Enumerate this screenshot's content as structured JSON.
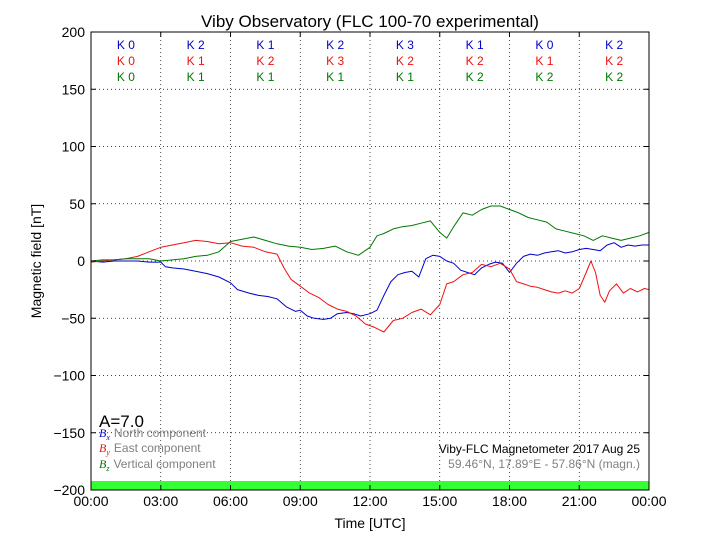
{
  "chart_data": {
    "type": "line",
    "title": "Viby Observatory (FLC 100-70 experimental)",
    "xlabel": "Time [UTC]",
    "ylabel": "Magnetic field [nT]",
    "xlim": [
      0,
      24
    ],
    "ylim": [
      -200,
      200
    ],
    "x_tick_labels": [
      "00:00",
      "03:00",
      "06:00",
      "09:00",
      "12:00",
      "15:00",
      "18:00",
      "21:00",
      "00:00"
    ],
    "y_ticks": [
      200,
      150,
      100,
      50,
      0,
      -50,
      -100,
      -150,
      -200
    ],
    "y_tick_labels": [
      "200",
      "150",
      "100",
      "50",
      "0",
      "−50",
      "−100",
      "−150",
      "−200"
    ],
    "grid": true,
    "colors": {
      "bx": "#0000cc",
      "by": "#ee1111",
      "bz": "#007700",
      "status_bar": "#33ff33",
      "muted": "#808080"
    },
    "k_index": {
      "bx": [
        "K 0",
        "K 2",
        "K 1",
        "K 2",
        "K 3",
        "K 1",
        "K 0",
        "K 2"
      ],
      "by": [
        "K 0",
        "K 1",
        "K 2",
        "K 3",
        "K 2",
        "K 2",
        "K 1",
        "K 2"
      ],
      "bz": [
        "K 0",
        "K 1",
        "K 1",
        "K 1",
        "K 1",
        "K 2",
        "K 2",
        "K 2"
      ]
    },
    "a_index": "A=7.0",
    "legend": {
      "position": "bottom-left",
      "entries": [
        {
          "symbol": "B",
          "sub": "x",
          "label": "North component"
        },
        {
          "symbol": "B",
          "sub": "y",
          "label": "East component"
        },
        {
          "symbol": "B",
          "sub": "z",
          "label": "Vertical component"
        }
      ]
    },
    "station_text": "Viby-FLC Magnetometer 2017 Aug 25",
    "coord_text": "59.46°N, 17.89°E - 57.86°N (magn.)",
    "series": [
      {
        "key": "bx",
        "x": [
          0,
          0.5,
          1,
          1.5,
          2,
          2.5,
          3,
          3.2,
          3.5,
          4,
          4.5,
          5,
          5.5,
          6,
          6.3,
          6.8,
          7.2,
          7.6,
          8,
          8.4,
          8.8,
          9,
          9.3,
          9.6,
          10,
          10.3,
          10.6,
          11,
          11.3,
          11.6,
          12,
          12.3,
          12.6,
          12.9,
          13.2,
          13.5,
          13.8,
          14.1,
          14.4,
          14.7,
          15,
          15.3,
          15.6,
          15.9,
          16.2,
          16.5,
          16.8,
          17.1,
          17.4,
          17.7,
          18,
          18.3,
          18.6,
          18.9,
          19.2,
          19.5,
          19.8,
          20.1,
          20.4,
          20.7,
          21,
          21.3,
          21.6,
          21.9,
          22.2,
          22.5,
          22.8,
          23.1,
          23.4,
          23.7,
          24
        ],
        "y": [
          0,
          -1,
          0,
          0,
          0,
          -1,
          -1,
          -5,
          -6,
          -7,
          -9,
          -11,
          -14,
          -19,
          -25,
          -28,
          -30,
          -31,
          -33,
          -40,
          -44,
          -43,
          -48,
          -50,
          -51,
          -50,
          -46,
          -45,
          -46,
          -48,
          -46,
          -43,
          -30,
          -18,
          -12,
          -10,
          -9,
          -14,
          2,
          5,
          4,
          0,
          -2,
          -8,
          -10,
          -12,
          -6,
          -3,
          -1,
          -2,
          -10,
          -2,
          4,
          6,
          5,
          7,
          8,
          9,
          7,
          8,
          10,
          11,
          10,
          9,
          14,
          16,
          12,
          14,
          13,
          14,
          14
        ]
      },
      {
        "key": "by",
        "x": [
          0,
          0.5,
          1,
          1.5,
          2,
          2.5,
          3,
          3.5,
          4,
          4.5,
          5,
          5.5,
          6,
          6.5,
          7,
          7.5,
          8,
          8.3,
          8.6,
          9,
          9.4,
          9.8,
          10.2,
          10.6,
          11,
          11.4,
          11.8,
          12.2,
          12.6,
          13,
          13.4,
          13.8,
          14.2,
          14.6,
          15,
          15.3,
          15.6,
          16,
          16.4,
          16.8,
          17.2,
          17.6,
          18,
          18.3,
          18.6,
          18.9,
          19.2,
          19.5,
          19.8,
          20.1,
          20.4,
          20.7,
          21,
          21.3,
          21.5,
          21.7,
          21.9,
          22.1,
          22.3,
          22.6,
          22.9,
          23.2,
          23.5,
          23.8,
          24
        ],
        "y": [
          -1,
          0,
          1,
          2,
          4,
          8,
          12,
          14,
          16,
          18,
          17,
          15,
          16,
          13,
          12,
          8,
          6,
          -6,
          -16,
          -22,
          -28,
          -32,
          -38,
          -42,
          -44,
          -48,
          -55,
          -58,
          -62,
          -52,
          -50,
          -45,
          -42,
          -47,
          -38,
          -20,
          -18,
          -12,
          -10,
          -3,
          -5,
          -2,
          -7,
          -18,
          -20,
          -22,
          -23,
          -25,
          -27,
          -28,
          -26,
          -28,
          -24,
          -10,
          0,
          -10,
          -30,
          -36,
          -26,
          -20,
          -28,
          -24,
          -27,
          -24,
          -25
        ]
      },
      {
        "key": "bz",
        "x": [
          0,
          0.5,
          1,
          1.5,
          2,
          2.5,
          3,
          3.5,
          4,
          4.5,
          5,
          5.5,
          6,
          6.5,
          7,
          7.5,
          8,
          8.5,
          9,
          9.5,
          10,
          10.5,
          11,
          11.5,
          12,
          12.3,
          12.6,
          13,
          13.4,
          13.8,
          14.2,
          14.6,
          15,
          15.3,
          15.6,
          16,
          16.4,
          16.8,
          17.2,
          17.6,
          18,
          18.4,
          18.8,
          19.2,
          19.6,
          20,
          20.4,
          20.8,
          21.2,
          21.6,
          22,
          22.4,
          22.8,
          23.2,
          23.6,
          24
        ],
        "y": [
          0,
          1,
          1,
          2,
          2,
          2,
          0,
          1,
          2,
          4,
          5,
          8,
          17,
          19,
          21,
          18,
          15,
          13,
          12,
          10,
          11,
          13,
          8,
          5,
          12,
          22,
          24,
          28,
          30,
          31,
          33,
          35,
          25,
          20,
          30,
          42,
          40,
          45,
          48,
          48,
          45,
          42,
          38,
          36,
          34,
          28,
          26,
          24,
          22,
          18,
          22,
          20,
          18,
          20,
          22,
          25
        ]
      }
    ]
  }
}
